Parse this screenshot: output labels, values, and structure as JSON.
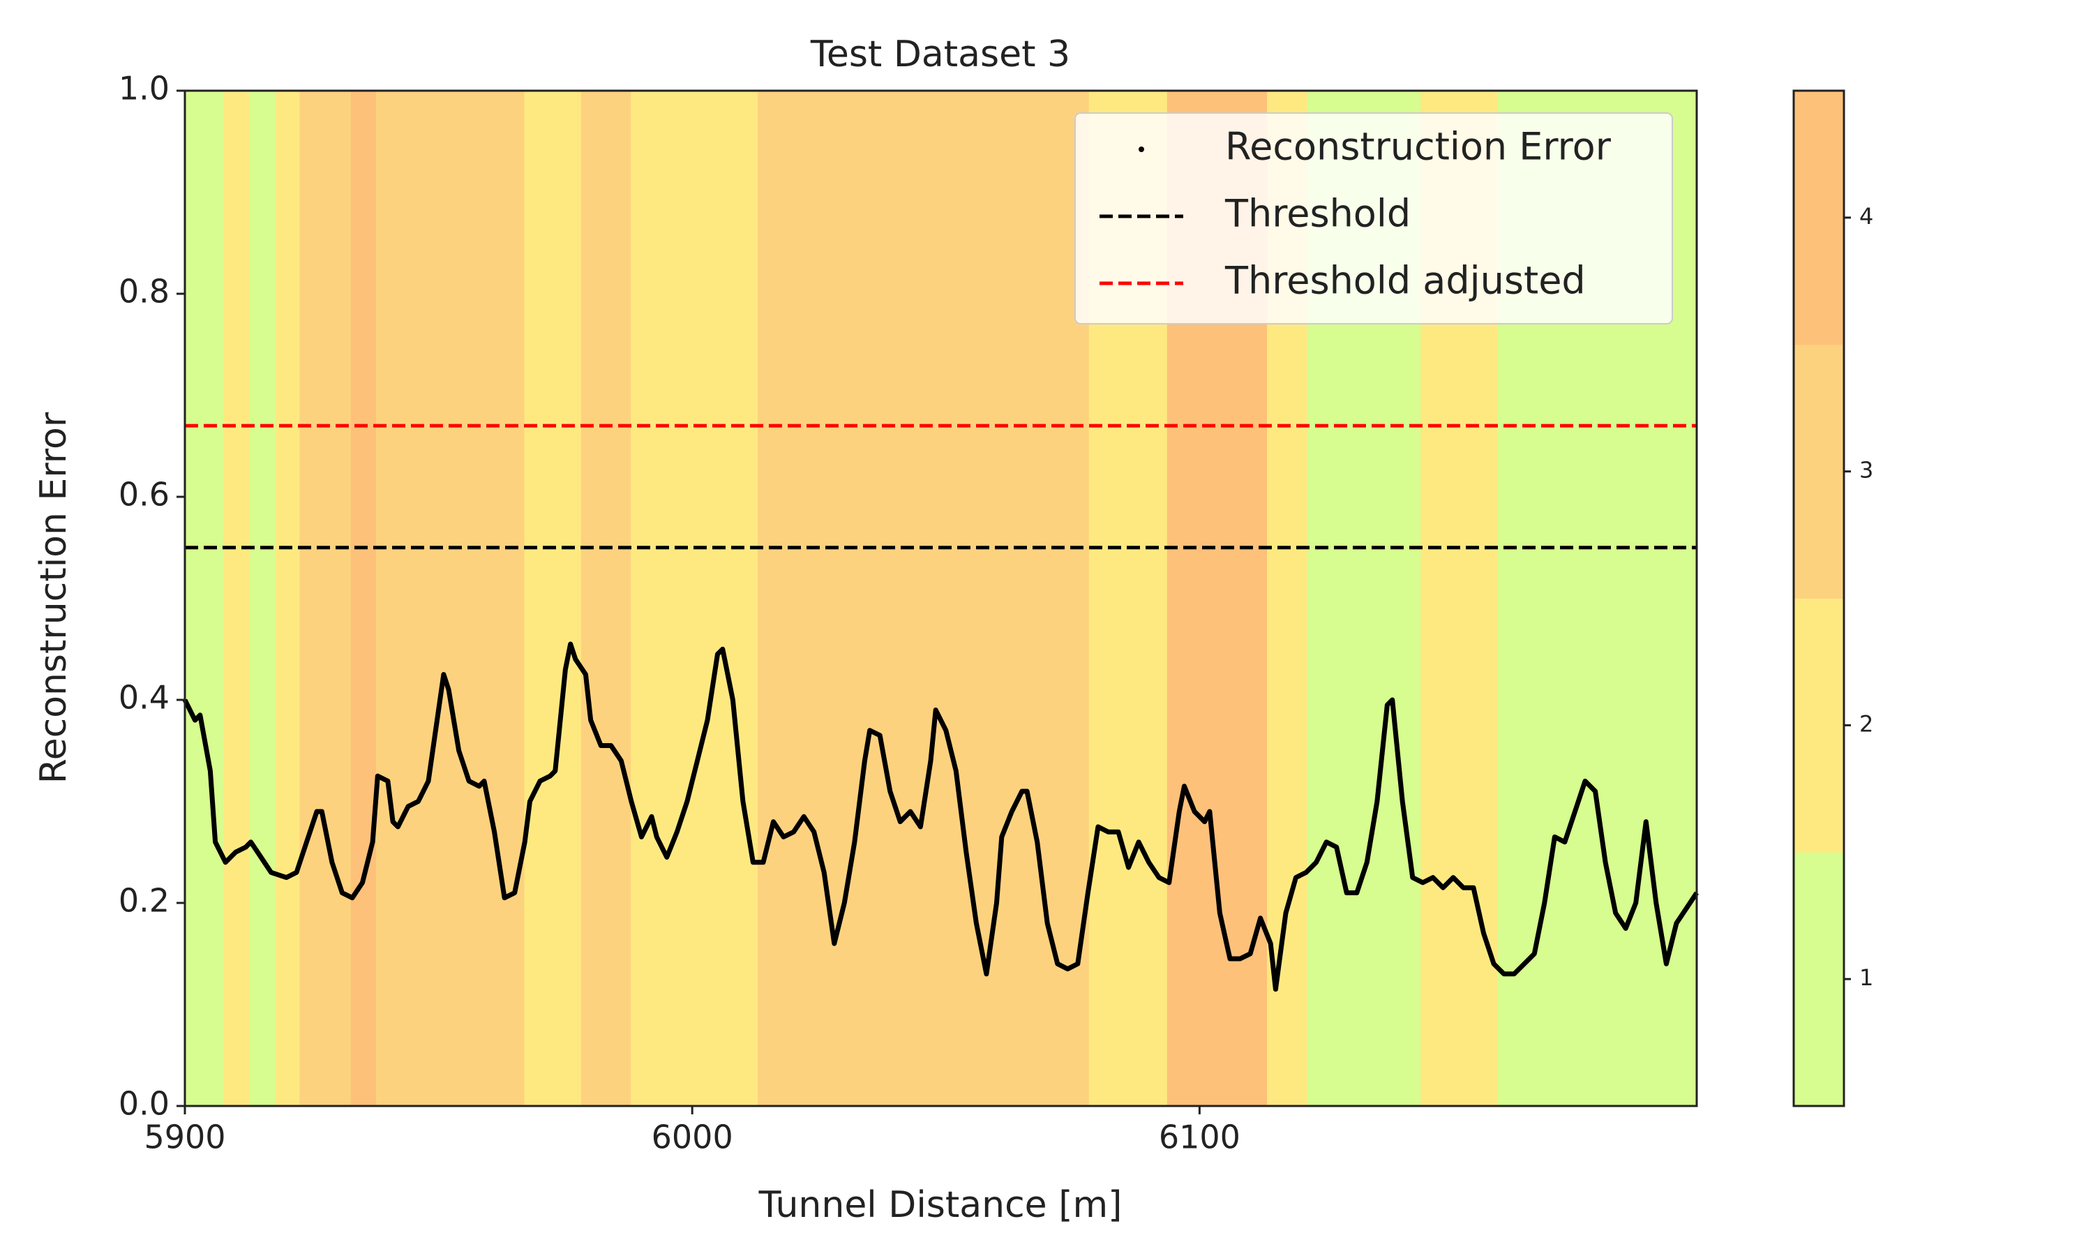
{
  "chart_data": {
    "type": "line",
    "title": "Test Dataset 3",
    "xlabel": "Tunnel Distance [m]",
    "ylabel": "Reconstruction Error",
    "xlim": [
      5900,
      6198
    ],
    "ylim": [
      0,
      1
    ],
    "xticks": [
      5900,
      6000,
      6100
    ],
    "yticks": [
      {
        "value": 0,
        "label": "0.0"
      },
      {
        "value": 0.2,
        "label": "0.2"
      },
      {
        "value": 0.4,
        "label": "0.4"
      },
      {
        "value": 0.6,
        "label": "0.6"
      },
      {
        "value": 0.8,
        "label": "0.8"
      },
      {
        "value": 1,
        "label": "1.0"
      }
    ],
    "x": [
      5900,
      5902,
      5903,
      5905,
      5906,
      5908,
      5910,
      5912,
      5913,
      5915,
      5917,
      5920,
      5922,
      5924,
      5926,
      5927,
      5929,
      5931,
      5933,
      5935,
      5937,
      5938,
      5940,
      5941,
      5942,
      5944,
      5946,
      5948,
      5950,
      5951,
      5952,
      5954,
      5956,
      5958,
      5959,
      5961,
      5963,
      5965,
      5967,
      5968,
      5970,
      5972,
      5973,
      5975,
      5976,
      5977,
      5979,
      5980,
      5982,
      5984,
      5986,
      5988,
      5990,
      5992,
      5993,
      5995,
      5997,
      5999,
      6001,
      6003,
      6005,
      6006,
      6008,
      6010,
      6012,
      6014,
      6016,
      6018,
      6020,
      6022,
      6024,
      6026,
      6028,
      6030,
      6032,
      6034,
      6035,
      6037,
      6039,
      6041,
      6043,
      6045,
      6047,
      6048,
      6050,
      6052,
      6054,
      6056,
      6058,
      6060,
      6061,
      6063,
      6065,
      6066,
      6068,
      6070,
      6072,
      6074,
      6076,
      6078,
      6080,
      6082,
      6084,
      6086,
      6088,
      6090,
      6092,
      6094,
      6096,
      6097,
      6099,
      6101,
      6102,
      6104,
      6106,
      6108,
      6110,
      6112,
      6114,
      6115,
      6117,
      6119,
      6121,
      6123,
      6125,
      6127,
      6129,
      6131,
      6133,
      6135,
      6137,
      6138,
      6140,
      6142,
      6144,
      6146,
      6148,
      6150,
      6152,
      6154,
      6156,
      6158,
      6160,
      6162,
      6164,
      6166,
      6168,
      6170,
      6172,
      6174,
      6176,
      6178,
      6180,
      6182,
      6184,
      6186,
      6188,
      6190,
      6192,
      6194,
      6196,
      6198
    ],
    "series": [
      {
        "name": "Reconstruction Error",
        "color": "#000000",
        "values": [
          0.4,
          0.38,
          0.385,
          0.33,
          0.26,
          0.24,
          0.25,
          0.255,
          0.26,
          0.245,
          0.23,
          0.225,
          0.23,
          0.26,
          0.29,
          0.29,
          0.24,
          0.21,
          0.205,
          0.22,
          0.26,
          0.325,
          0.32,
          0.28,
          0.275,
          0.295,
          0.3,
          0.32,
          0.39,
          0.425,
          0.41,
          0.35,
          0.32,
          0.315,
          0.32,
          0.27,
          0.205,
          0.21,
          0.26,
          0.3,
          0.32,
          0.325,
          0.33,
          0.43,
          0.455,
          0.44,
          0.425,
          0.38,
          0.355,
          0.355,
          0.34,
          0.3,
          0.265,
          0.285,
          0.265,
          0.245,
          0.27,
          0.3,
          0.34,
          0.38,
          0.445,
          0.45,
          0.4,
          0.3,
          0.24,
          0.24,
          0.28,
          0.265,
          0.27,
          0.285,
          0.27,
          0.23,
          0.16,
          0.2,
          0.26,
          0.34,
          0.37,
          0.365,
          0.31,
          0.28,
          0.29,
          0.275,
          0.34,
          0.39,
          0.37,
          0.33,
          0.25,
          0.18,
          0.13,
          0.2,
          0.265,
          0.29,
          0.31,
          0.31,
          0.26,
          0.18,
          0.14,
          0.135,
          0.14,
          0.21,
          0.275,
          0.27,
          0.27,
          0.235,
          0.26,
          0.24,
          0.225,
          0.22,
          0.29,
          0.315,
          0.29,
          0.28,
          0.29,
          0.19,
          0.145,
          0.145,
          0.15,
          0.185,
          0.16,
          0.115,
          0.19,
          0.225,
          0.23,
          0.24,
          0.26,
          0.255,
          0.21,
          0.21,
          0.24,
          0.3,
          0.395,
          0.4,
          0.3,
          0.225,
          0.22,
          0.225,
          0.215,
          0.225,
          0.215,
          0.215,
          0.17,
          0.14,
          0.13,
          0.13,
          0.14,
          0.15,
          0.2,
          0.265,
          0.26,
          0.29,
          0.32,
          0.31,
          0.24,
          0.19,
          0.175,
          0.2,
          0.28,
          0.2,
          0.14,
          0.18,
          0.195,
          0.21
        ]
      }
    ],
    "thresholds": [
      {
        "name": "Threshold",
        "value": 0.55,
        "color": "#000000"
      },
      {
        "name": "Threshold adjusted",
        "value": 0.67,
        "color": "#ff0000"
      }
    ],
    "bands": {
      "edges": [
        5900,
        5907.7,
        5912.7,
        5917.8,
        5922.6,
        5932.7,
        5937.7,
        5966.9,
        5978.1,
        5987.9,
        5991.9,
        6012.9,
        6078.2,
        6093.6,
        6113.3,
        6121.2,
        6143.6,
        6158.7,
        6198
      ],
      "classes": [
        1,
        2,
        1,
        2,
        3,
        4,
        3,
        2,
        3,
        2,
        2,
        3,
        2,
        4,
        2,
        1,
        2,
        1
      ]
    },
    "colorbar": {
      "colors": [
        "#d7fc8f",
        "#fee981",
        "#fdd27f",
        "#fdc17a"
      ],
      "lim": [
        0.5,
        4.5
      ],
      "ticks": [
        1,
        2,
        3,
        4
      ]
    }
  }
}
